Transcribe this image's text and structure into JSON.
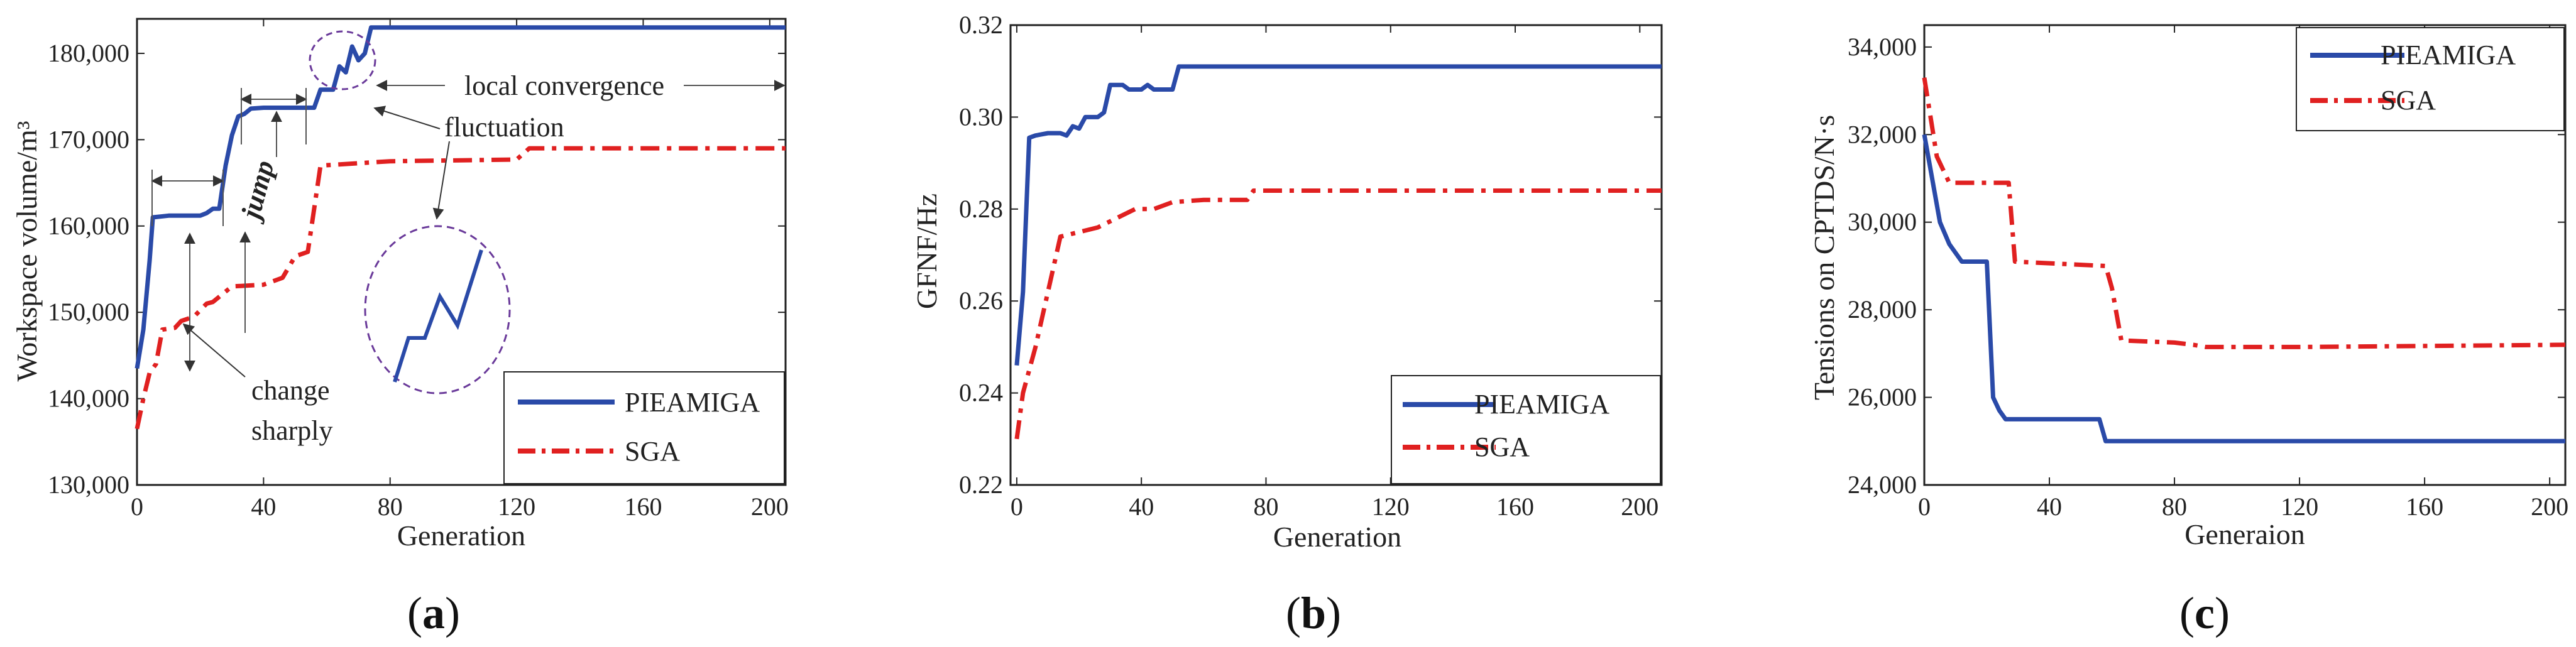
{
  "chart_data": [
    {
      "type": "line",
      "panel_label": "a",
      "xlabel": "Generation",
      "ylabel": "Workspace volume/m³",
      "xlim": [
        0,
        205
      ],
      "ylim": [
        130000,
        184000
      ],
      "x_ticks": [
        0,
        40,
        80,
        120,
        160,
        200
      ],
      "x_tick_labels": [
        "0",
        "40",
        "80",
        "120",
        "160",
        "200"
      ],
      "y_ticks": [
        130000,
        140000,
        150000,
        160000,
        170000,
        180000
      ],
      "y_tick_labels": [
        "130,000",
        "140,000",
        "150,000",
        "160,000",
        "170,000",
        "180,000"
      ],
      "legend_position": "bottom-right",
      "series": [
        {
          "name": "PIEAMIGA",
          "color": "#2a4aa8",
          "style": "solid",
          "points": [
            [
              0,
              143500
            ],
            [
              2,
              148000
            ],
            [
              4,
              156000
            ],
            [
              5,
              161000
            ],
            [
              10,
              161200
            ],
            [
              20,
              161200
            ],
            [
              22,
              161500
            ],
            [
              24,
              162000
            ],
            [
              26,
              162000
            ],
            [
              28,
              167000
            ],
            [
              30,
              170500
            ],
            [
              32,
              172700
            ],
            [
              34,
              173000
            ],
            [
              36,
              173600
            ],
            [
              40,
              173700
            ],
            [
              50,
              173700
            ],
            [
              56,
              173700
            ],
            [
              58,
              175800
            ],
            [
              62,
              175800
            ],
            [
              64,
              178500
            ],
            [
              66,
              177800
            ],
            [
              68,
              180800
            ],
            [
              70,
              179200
            ],
            [
              72,
              180000
            ],
            [
              74,
              183000
            ],
            [
              205,
              183000
            ]
          ]
        },
        {
          "name": "SGA",
          "color": "#e02020",
          "style": "dashdot",
          "points": [
            [
              0,
              136500
            ],
            [
              2,
              140000
            ],
            [
              4,
              143000
            ],
            [
              6,
              144000
            ],
            [
              8,
              148000
            ],
            [
              12,
              148200
            ],
            [
              14,
              149000
            ],
            [
              18,
              149500
            ],
            [
              22,
              151000
            ],
            [
              24,
              151200
            ],
            [
              30,
              153000
            ],
            [
              40,
              153200
            ],
            [
              46,
              154000
            ],
            [
              50,
              156500
            ],
            [
              54,
              157000
            ],
            [
              58,
              167000
            ],
            [
              80,
              167500
            ],
            [
              120,
              167700
            ],
            [
              124,
              169000
            ],
            [
              205,
              169000
            ]
          ]
        }
      ],
      "annotations": [
        "local convergence",
        "fluctuation",
        "jump",
        "change",
        "sharply"
      ]
    },
    {
      "type": "line",
      "panel_label": "b",
      "xlabel": "Generation",
      "ylabel": "GFNF/Hz",
      "xlim": [
        -2,
        207
      ],
      "ylim": [
        0.22,
        0.32
      ],
      "x_ticks": [
        0,
        40,
        80,
        120,
        160,
        200
      ],
      "x_tick_labels": [
        "0",
        "40",
        "80",
        "120",
        "160",
        "200"
      ],
      "y_ticks": [
        0.22,
        0.24,
        0.26,
        0.28,
        0.3,
        0.32
      ],
      "y_tick_labels": [
        "0.22",
        "0.24",
        "0.26",
        "0.28",
        "0.30",
        "0.32"
      ],
      "legend_position": "bottom-right",
      "series": [
        {
          "name": "PIEAMIGA",
          "color": "#2a4aa8",
          "style": "solid",
          "points": [
            [
              0,
              0.246
            ],
            [
              2,
              0.262
            ],
            [
              4,
              0.2955
            ],
            [
              6,
              0.296
            ],
            [
              10,
              0.2965
            ],
            [
              14,
              0.2965
            ],
            [
              16,
              0.296
            ],
            [
              18,
              0.298
            ],
            [
              20,
              0.2975
            ],
            [
              22,
              0.3
            ],
            [
              26,
              0.3
            ],
            [
              28,
              0.301
            ],
            [
              30,
              0.307
            ],
            [
              34,
              0.307
            ],
            [
              36,
              0.306
            ],
            [
              40,
              0.306
            ],
            [
              42,
              0.307
            ],
            [
              44,
              0.306
            ],
            [
              50,
              0.306
            ],
            [
              52,
              0.311
            ],
            [
              207,
              0.311
            ]
          ]
        },
        {
          "name": "SGA",
          "color": "#e02020",
          "style": "dashdot",
          "points": [
            [
              0,
              0.23
            ],
            [
              2,
              0.24
            ],
            [
              6,
              0.25
            ],
            [
              10,
              0.262
            ],
            [
              14,
              0.274
            ],
            [
              20,
              0.275
            ],
            [
              26,
              0.276
            ],
            [
              32,
              0.278
            ],
            [
              38,
              0.28
            ],
            [
              44,
              0.28
            ],
            [
              50,
              0.2815
            ],
            [
              60,
              0.282
            ],
            [
              74,
              0.282
            ],
            [
              76,
              0.284
            ],
            [
              207,
              0.284
            ]
          ]
        }
      ]
    },
    {
      "type": "line",
      "panel_label": "c",
      "xlabel": "Generaion",
      "ylabel": "Tensions on CPTDS/N·s",
      "xlim": [
        0,
        205
      ],
      "ylim": [
        24000,
        34500
      ],
      "x_ticks": [
        0,
        40,
        80,
        120,
        160,
        200
      ],
      "x_tick_labels": [
        "0",
        "40",
        "80",
        "120",
        "160",
        "200"
      ],
      "y_ticks": [
        24000,
        26000,
        28000,
        30000,
        32000,
        34000
      ],
      "y_tick_labels": [
        "24,000",
        "26,000",
        "28,000",
        "30,000",
        "32,000",
        "34,000"
      ],
      "legend_position": "top-right",
      "series": [
        {
          "name": "PIEAMIGA",
          "color": "#2a4aa8",
          "style": "solid",
          "points": [
            [
              0,
              32000
            ],
            [
              5,
              30000
            ],
            [
              8,
              29500
            ],
            [
              12,
              29100
            ],
            [
              17,
              29100
            ],
            [
              20,
              29100
            ],
            [
              22,
              26000
            ],
            [
              24,
              25700
            ],
            [
              26,
              25500
            ],
            [
              56,
              25500
            ],
            [
              58,
              25000
            ],
            [
              205,
              25000
            ]
          ]
        },
        {
          "name": "SGA",
          "color": "#e02020",
          "style": "dashdot",
          "points": [
            [
              0,
              33300
            ],
            [
              4,
              31500
            ],
            [
              8,
              30900
            ],
            [
              20,
              30900
            ],
            [
              27,
              30900
            ],
            [
              29,
              29100
            ],
            [
              58,
              29000
            ],
            [
              60,
              28500
            ],
            [
              63,
              27300
            ],
            [
              80,
              27250
            ],
            [
              86,
              27200
            ],
            [
              90,
              27150
            ],
            [
              120,
              27150
            ],
            [
              205,
              27200
            ]
          ]
        }
      ]
    }
  ]
}
